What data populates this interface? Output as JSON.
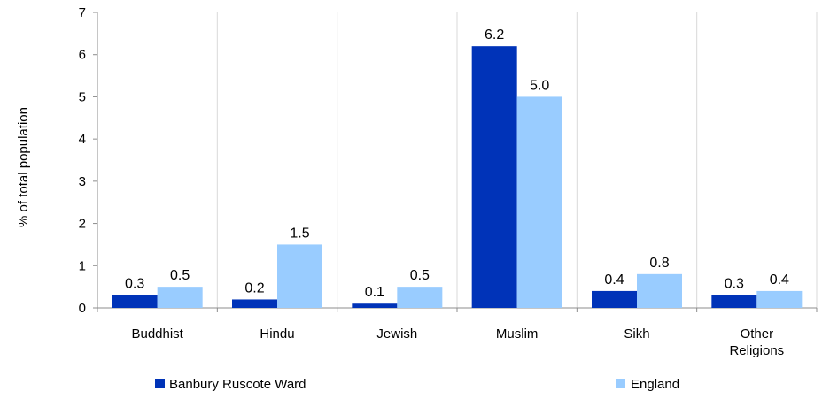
{
  "chart_data": {
    "type": "bar",
    "categories": [
      [
        "Buddhist"
      ],
      [
        "Hindu"
      ],
      [
        "Jewish"
      ],
      [
        "Muslim"
      ],
      [
        "Sikh"
      ],
      [
        "Other",
        "Religions"
      ]
    ],
    "series": [
      {
        "name": "Banbury Ruscote Ward",
        "color": "#0033B8",
        "values": [
          0.3,
          0.2,
          0.1,
          6.2,
          0.4,
          0.3
        ]
      },
      {
        "name": "England",
        "color": "#99CCFF",
        "values": [
          0.5,
          1.5,
          0.5,
          5.0,
          0.8,
          0.4
        ]
      }
    ],
    "ylabel": "% of total population",
    "ylim": [
      0,
      7
    ],
    "yticks": [
      0,
      1,
      2,
      3,
      4,
      5,
      6,
      7
    ],
    "data_labels": [
      [
        "0.3",
        "0.2",
        "0.1",
        "6.2",
        "0.4",
        "0.3"
      ],
      [
        "0.5",
        "1.5",
        "0.5",
        "5.0",
        "0.8",
        "0.4"
      ]
    ],
    "grid": "vertical category separators",
    "legend_position": "bottom"
  }
}
